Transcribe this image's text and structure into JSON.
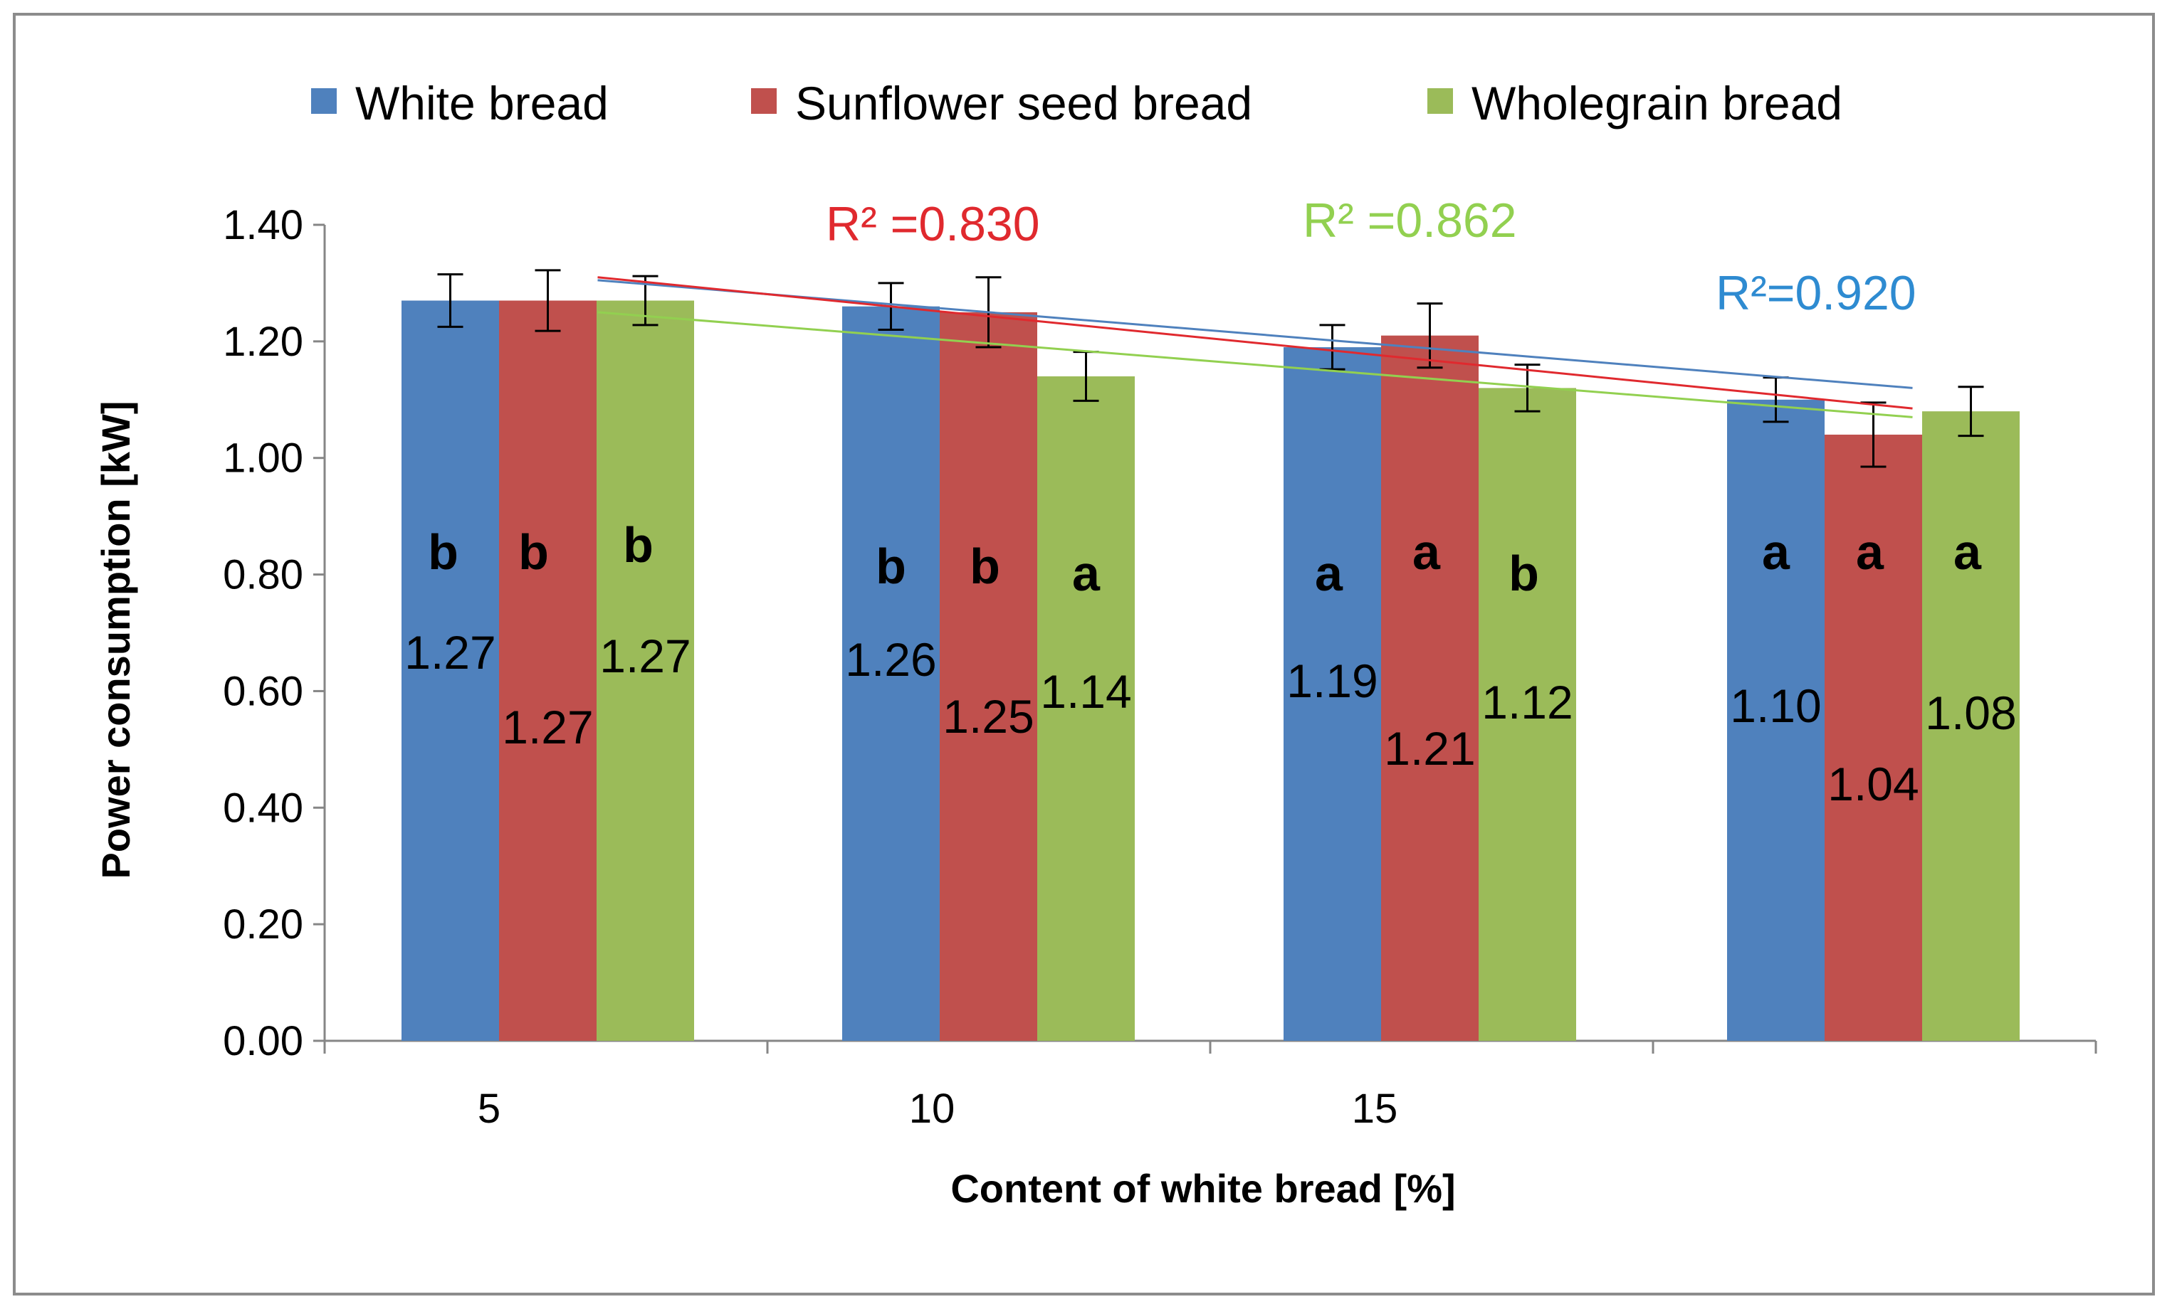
{
  "chart_data": {
    "type": "bar",
    "categories": [
      "5",
      "10",
      "15",
      ""
    ],
    "xlabel": "Content of white bread [%]",
    "ylabel": "Power consumption [kW]",
    "ylim": [
      0,
      1.4
    ],
    "yticks": [
      "0.00",
      "0.20",
      "0.40",
      "0.60",
      "0.80",
      "1.00",
      "1.20",
      "1.40"
    ],
    "series": [
      {
        "name": "White bread",
        "color": "#4F81BD",
        "values": [
          1.27,
          1.26,
          1.19,
          1.1
        ],
        "value_labels": [
          "1.27",
          "1.26",
          "1.19",
          "1.10"
        ],
        "errors": [
          0.045,
          0.04,
          0.038,
          0.038
        ],
        "letters": [
          "b",
          "b",
          "a",
          "a"
        ],
        "trend": {
          "start": 1.305,
          "end": 1.12,
          "color": "#4F81BD",
          "r2_label": "R²=0.920"
        }
      },
      {
        "name": "Sunflower seed bread",
        "color": "#C0504D",
        "values": [
          1.27,
          1.25,
          1.21,
          1.04
        ],
        "value_labels": [
          "1.27",
          "1.25",
          "1.21",
          "1.04"
        ],
        "errors": [
          0.052,
          0.06,
          0.055,
          0.055
        ],
        "letters": [
          "b",
          "b",
          "a",
          "a"
        ],
        "trend": {
          "start": 1.31,
          "end": 1.085,
          "color": "#E0292E",
          "r2_label": "R² =0.830"
        }
      },
      {
        "name": "Wholegrain bread",
        "color": "#9BBB59",
        "values": [
          1.27,
          1.14,
          1.12,
          1.08
        ],
        "value_labels": [
          "1.27",
          "1.14",
          "1.12",
          "1.08"
        ],
        "errors": [
          0.042,
          0.042,
          0.04,
          0.042
        ],
        "letters": [
          "b",
          "a",
          "b",
          "a"
        ],
        "trend": {
          "start": 1.25,
          "end": 1.07,
          "color": "#92D050",
          "r2_label": "R² =0.862"
        }
      }
    ]
  }
}
